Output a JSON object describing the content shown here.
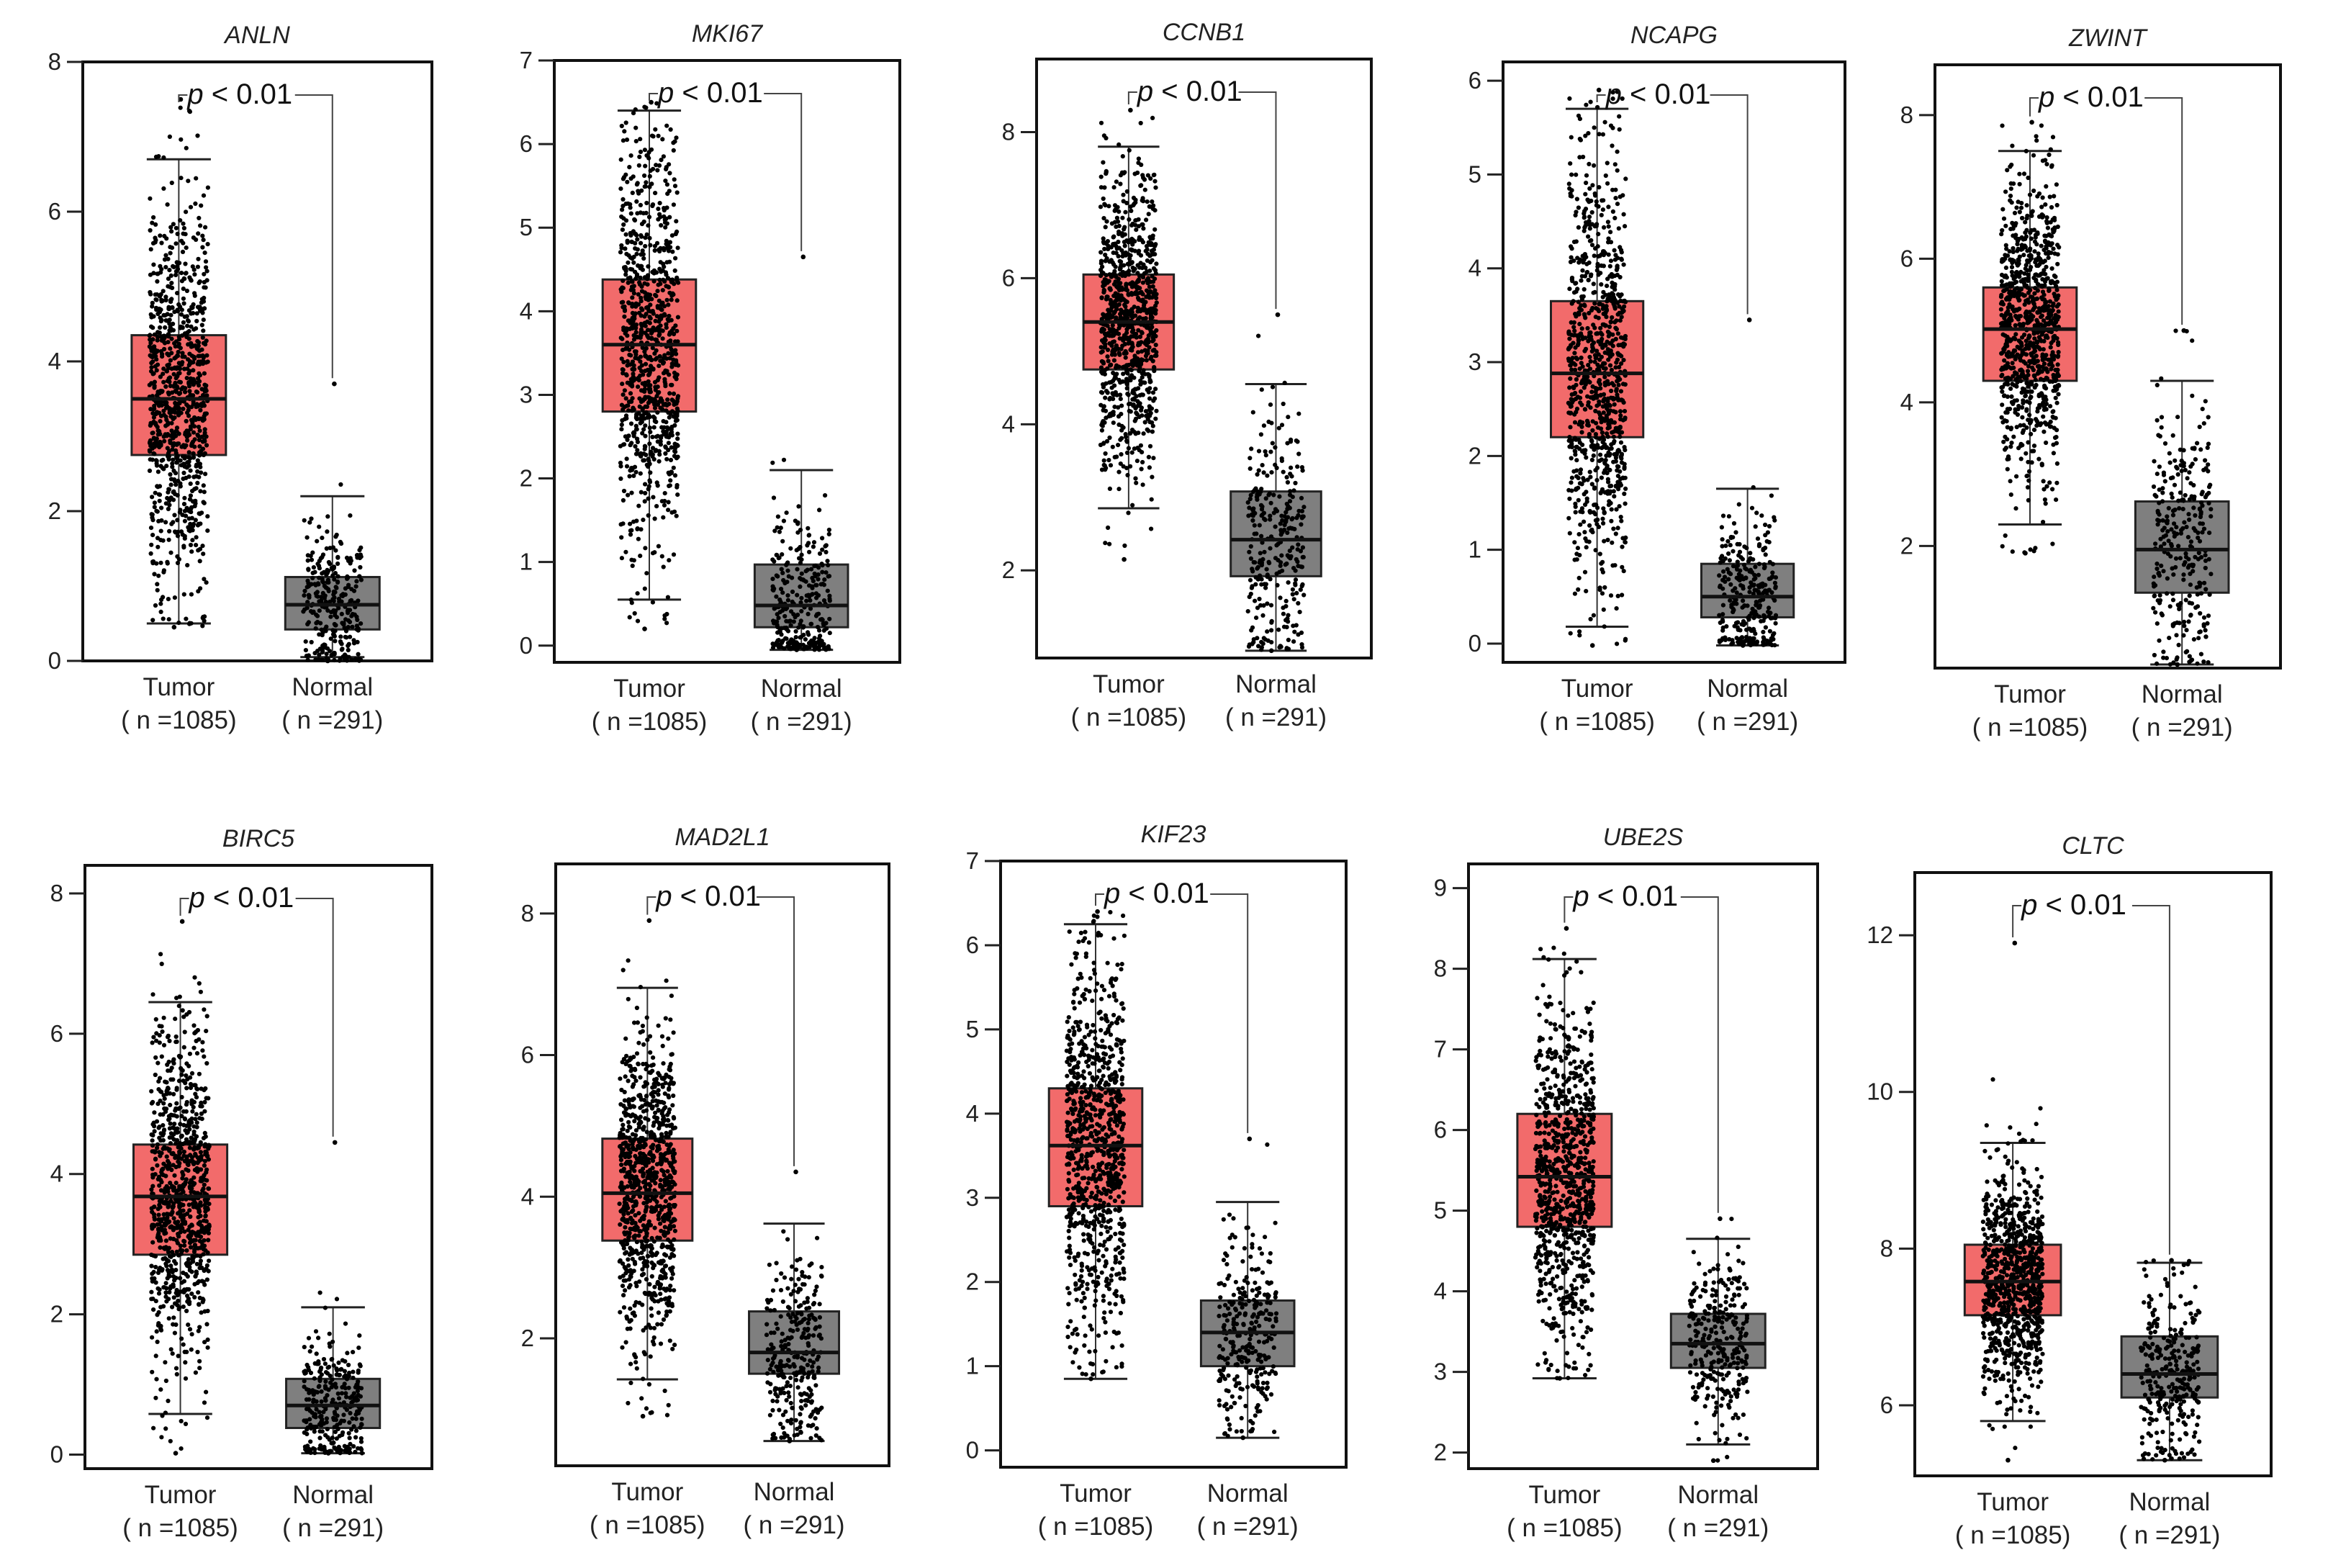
{
  "colors": {
    "tumor": "#F26B6B",
    "normal": "#7F7F7F",
    "points": "#000000",
    "frame": "#111111"
  },
  "chart_data": [
    {
      "type": "box",
      "gene": "ANLN",
      "p_value_label": "< 0.01",
      "p_symbol": "p",
      "ylim": [
        0,
        8
      ],
      "yticks": [
        0,
        2,
        4,
        6,
        8
      ],
      "groups": [
        {
          "name": "Tumor",
          "n_label": "( n =1085)",
          "n": 1085,
          "q1": 2.75,
          "median": 3.5,
          "q3": 4.35,
          "whisker_low": 0.5,
          "whisker_high": 6.7,
          "point_min": 0.45,
          "point_max": 7.5,
          "color": "tumor"
        },
        {
          "name": "Normal",
          "n_label": "( n =291)",
          "n": 291,
          "q1": 0.42,
          "median": 0.75,
          "q3": 1.12,
          "whisker_low": 0.05,
          "whisker_high": 2.2,
          "point_min": 0.0,
          "point_max": 3.7,
          "color": "normal"
        }
      ]
    },
    {
      "type": "box",
      "gene": "MKI67",
      "p_value_label": "< 0.01",
      "p_symbol": "p",
      "ylim": [
        -0.2,
        7
      ],
      "yticks": [
        0,
        1,
        2,
        3,
        4,
        5,
        6,
        7
      ],
      "groups": [
        {
          "name": "Tumor",
          "n_label": "( n =1085)",
          "n": 1085,
          "q1": 2.8,
          "median": 3.6,
          "q3": 4.38,
          "whisker_low": 0.55,
          "whisker_high": 6.4,
          "point_min": 0.2,
          "point_max": 6.5,
          "color": "tumor"
        },
        {
          "name": "Normal",
          "n_label": "( n =291)",
          "n": 291,
          "q1": 0.22,
          "median": 0.48,
          "q3": 0.97,
          "whisker_low": -0.05,
          "whisker_high": 2.1,
          "point_min": -0.05,
          "point_max": 4.65,
          "color": "normal"
        }
      ]
    },
    {
      "type": "box",
      "gene": "CCNB1",
      "p_value_label": "< 0.01",
      "p_symbol": "p",
      "ylim": [
        0.8,
        9
      ],
      "yticks": [
        2,
        4,
        6,
        8
      ],
      "groups": [
        {
          "name": "Tumor",
          "n_label": "( n =1085)",
          "n": 1085,
          "q1": 4.75,
          "median": 5.4,
          "q3": 6.05,
          "whisker_low": 2.85,
          "whisker_high": 7.8,
          "point_min": 2.15,
          "point_max": 8.3,
          "color": "tumor"
        },
        {
          "name": "Normal",
          "n_label": "( n =291)",
          "n": 291,
          "q1": 1.92,
          "median": 2.42,
          "q3": 3.08,
          "whisker_low": 0.9,
          "whisker_high": 4.55,
          "point_min": 0.9,
          "point_max": 5.5,
          "color": "normal"
        }
      ]
    },
    {
      "type": "box",
      "gene": "NCAPG",
      "p_value_label": "< 0.01",
      "p_symbol": "p",
      "ylim": [
        -0.2,
        6.2
      ],
      "yticks": [
        0,
        1,
        2,
        3,
        4,
        5,
        6
      ],
      "groups": [
        {
          "name": "Tumor",
          "n_label": "( n =1085)",
          "n": 1085,
          "q1": 2.2,
          "median": 2.88,
          "q3": 3.65,
          "whisker_low": 0.18,
          "whisker_high": 5.7,
          "point_min": -0.02,
          "point_max": 5.9,
          "color": "tumor"
        },
        {
          "name": "Normal",
          "n_label": "( n =291)",
          "n": 291,
          "q1": 0.28,
          "median": 0.5,
          "q3": 0.85,
          "whisker_low": -0.02,
          "whisker_high": 1.65,
          "point_min": -0.02,
          "point_max": 3.45,
          "color": "normal"
        }
      ]
    },
    {
      "type": "box",
      "gene": "ZWINT",
      "p_value_label": "< 0.01",
      "p_symbol": "p",
      "ylim": [
        0.3,
        8.7
      ],
      "yticks": [
        2,
        4,
        6,
        8
      ],
      "groups": [
        {
          "name": "Tumor",
          "n_label": "( n =1085)",
          "n": 1085,
          "q1": 4.3,
          "median": 5.02,
          "q3": 5.6,
          "whisker_low": 2.3,
          "whisker_high": 7.5,
          "point_min": 1.9,
          "point_max": 7.9,
          "color": "tumor"
        },
        {
          "name": "Normal",
          "n_label": "( n =291)",
          "n": 291,
          "q1": 1.35,
          "median": 1.95,
          "q3": 2.62,
          "whisker_low": 0.35,
          "whisker_high": 4.3,
          "point_min": 0.35,
          "point_max": 5.0,
          "color": "normal"
        }
      ]
    },
    {
      "type": "box",
      "gene": "BIRC5",
      "p_value_label": "< 0.01",
      "p_symbol": "p",
      "ylim": [
        -0.2,
        8.4
      ],
      "yticks": [
        0,
        2,
        4,
        6,
        8
      ],
      "groups": [
        {
          "name": "Tumor",
          "n_label": "( n =1085)",
          "n": 1085,
          "q1": 2.85,
          "median": 3.68,
          "q3": 4.42,
          "whisker_low": 0.58,
          "whisker_high": 6.45,
          "point_min": 0.02,
          "point_max": 7.6,
          "color": "tumor"
        },
        {
          "name": "Normal",
          "n_label": "( n =291)",
          "n": 291,
          "q1": 0.38,
          "median": 0.7,
          "q3": 1.08,
          "whisker_low": 0.02,
          "whisker_high": 2.1,
          "point_min": 0.02,
          "point_max": 4.45,
          "color": "normal"
        }
      ]
    },
    {
      "type": "box",
      "gene": "MAD2L1",
      "p_value_label": "< 0.01",
      "p_symbol": "p",
      "ylim": [
        0.2,
        8.7
      ],
      "yticks": [
        2,
        4,
        6,
        8
      ],
      "groups": [
        {
          "name": "Tumor",
          "n_label": "( n =1085)",
          "n": 1085,
          "q1": 3.38,
          "median": 4.05,
          "q3": 4.82,
          "whisker_low": 1.42,
          "whisker_high": 6.95,
          "point_min": 0.9,
          "point_max": 7.9,
          "color": "tumor"
        },
        {
          "name": "Normal",
          "n_label": "( n =291)",
          "n": 291,
          "q1": 1.5,
          "median": 1.8,
          "q3": 2.38,
          "whisker_low": 0.55,
          "whisker_high": 3.62,
          "point_min": 0.55,
          "point_max": 4.35,
          "color": "normal"
        }
      ]
    },
    {
      "type": "box",
      "gene": "KIF23",
      "p_value_label": "< 0.01",
      "p_symbol": "p",
      "ylim": [
        -0.2,
        7
      ],
      "yticks": [
        0,
        1,
        2,
        3,
        4,
        5,
        6,
        7
      ],
      "groups": [
        {
          "name": "Tumor",
          "n_label": "( n =1085)",
          "n": 1085,
          "q1": 2.9,
          "median": 3.62,
          "q3": 4.3,
          "whisker_low": 0.85,
          "whisker_high": 6.25,
          "point_min": 0.85,
          "point_max": 6.4,
          "color": "tumor"
        },
        {
          "name": "Normal",
          "n_label": "( n =291)",
          "n": 291,
          "q1": 1.0,
          "median": 1.4,
          "q3": 1.78,
          "whisker_low": 0.15,
          "whisker_high": 2.95,
          "point_min": 0.15,
          "point_max": 3.7,
          "color": "normal"
        }
      ]
    },
    {
      "type": "box",
      "gene": "UBE2S",
      "p_value_label": "< 0.01",
      "p_symbol": "p",
      "ylim": [
        1.8,
        9.3
      ],
      "yticks": [
        2,
        3,
        4,
        5,
        6,
        7,
        8,
        9
      ],
      "groups": [
        {
          "name": "Tumor",
          "n_label": "( n =1085)",
          "n": 1085,
          "q1": 4.8,
          "median": 5.42,
          "q3": 6.2,
          "whisker_low": 2.92,
          "whisker_high": 8.12,
          "point_min": 2.92,
          "point_max": 8.5,
          "color": "tumor"
        },
        {
          "name": "Normal",
          "n_label": "( n =291)",
          "n": 291,
          "q1": 3.05,
          "median": 3.35,
          "q3": 3.72,
          "whisker_low": 2.1,
          "whisker_high": 4.65,
          "point_min": 1.9,
          "point_max": 4.9,
          "color": "normal"
        }
      ]
    },
    {
      "type": "box",
      "gene": "CLTC",
      "p_value_label": "< 0.01",
      "p_symbol": "p",
      "ylim": [
        5.1,
        12.8
      ],
      "yticks": [
        6,
        8,
        10,
        12
      ],
      "groups": [
        {
          "name": "Tumor",
          "n_label": "( n =1085)",
          "n": 1085,
          "q1": 7.15,
          "median": 7.58,
          "q3": 8.05,
          "whisker_low": 5.8,
          "whisker_high": 9.35,
          "point_min": 5.3,
          "point_max": 11.9,
          "color": "tumor"
        },
        {
          "name": "Normal",
          "n_label": "( n =291)",
          "n": 291,
          "q1": 6.1,
          "median": 6.4,
          "q3": 6.88,
          "whisker_low": 5.3,
          "whisker_high": 7.82,
          "point_min": 5.3,
          "point_max": 7.85,
          "color": "normal"
        }
      ]
    }
  ]
}
